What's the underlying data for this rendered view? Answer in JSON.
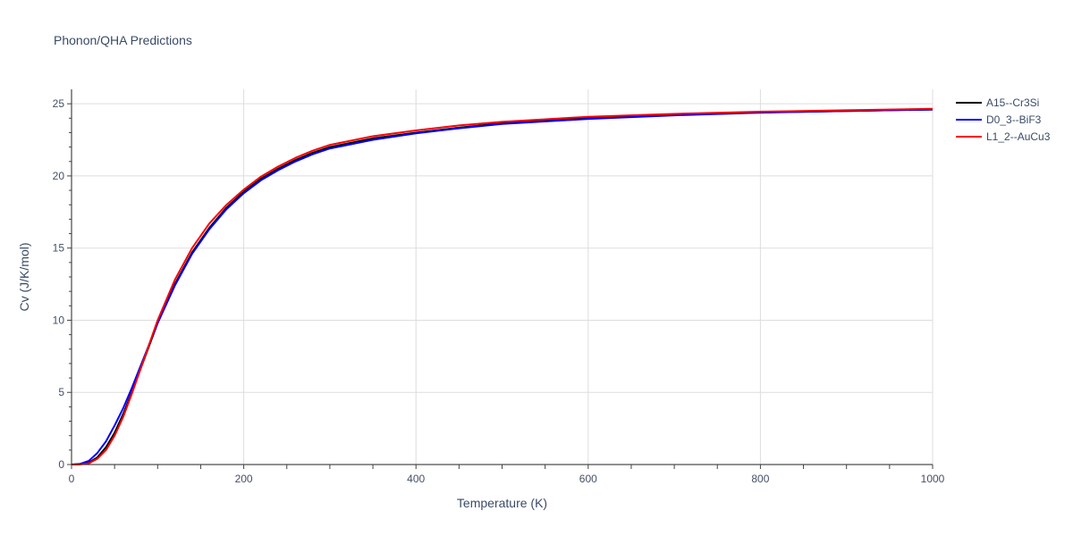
{
  "chart_data": {
    "type": "line",
    "title": "Phonon/QHA Predictions",
    "xlabel": "Temperature (K)",
    "ylabel": "Cv (J/K/mol)",
    "xlim": [
      0,
      1000
    ],
    "ylim": [
      0,
      26
    ],
    "x_ticks": [
      0,
      200,
      400,
      600,
      800,
      1000
    ],
    "y_ticks": [
      0,
      5,
      10,
      15,
      20,
      25
    ],
    "grid": true,
    "legend_position": "top-right, outside plot",
    "x": [
      0,
      10,
      20,
      30,
      40,
      50,
      60,
      70,
      80,
      90,
      100,
      120,
      140,
      160,
      180,
      200,
      220,
      240,
      260,
      280,
      300,
      350,
      400,
      450,
      500,
      600,
      700,
      800,
      900,
      1000
    ],
    "series": [
      {
        "name": "A15--Cr3Si",
        "color": "#000000",
        "values": [
          0,
          0.02,
          0.12,
          0.5,
          1.2,
          2.2,
          3.5,
          5.0,
          6.6,
          8.2,
          9.8,
          12.5,
          14.7,
          16.4,
          17.8,
          18.9,
          19.8,
          20.5,
          21.1,
          21.6,
          22.0,
          22.6,
          23.0,
          23.35,
          23.65,
          24.0,
          24.25,
          24.4,
          24.5,
          24.6
        ]
      },
      {
        "name": "D0_3--BiF3",
        "color": "#0000ff",
        "values": [
          0,
          0.05,
          0.25,
          0.8,
          1.6,
          2.7,
          3.9,
          5.3,
          6.8,
          8.3,
          9.8,
          12.4,
          14.6,
          16.3,
          17.7,
          18.8,
          19.7,
          20.4,
          21.0,
          21.5,
          21.9,
          22.5,
          22.95,
          23.3,
          23.6,
          23.95,
          24.2,
          24.38,
          24.5,
          24.6
        ]
      },
      {
        "name": "L1_2--AuCu3",
        "color": "#ff0000",
        "values": [
          0,
          0.01,
          0.08,
          0.4,
          1.0,
          2.0,
          3.3,
          4.9,
          6.6,
          8.3,
          10.0,
          12.8,
          15.0,
          16.7,
          18.0,
          19.05,
          19.95,
          20.65,
          21.25,
          21.75,
          22.15,
          22.75,
          23.15,
          23.5,
          23.75,
          24.1,
          24.3,
          24.45,
          24.55,
          24.65
        ]
      }
    ]
  }
}
